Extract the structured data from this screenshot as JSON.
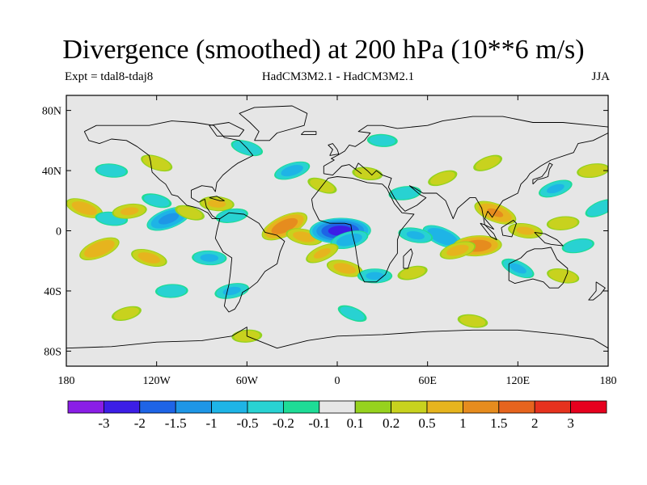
{
  "chart_data": {
    "type": "heatmap",
    "title": "Divergence (smoothed) at 200 hPa (10**6 m/s)",
    "experiment_label": "Expt = tdal8-tdaj8",
    "model_label": "HadCM3M2.1 - HadCM3M2.1",
    "season": "JJA",
    "xlabel": "",
    "ylabel": "",
    "xlim": [
      -180,
      180
    ],
    "ylim": [
      -90,
      90
    ],
    "x_ticks": [
      {
        "value": -180,
        "label": "180"
      },
      {
        "value": -120,
        "label": "120W"
      },
      {
        "value": -60,
        "label": "60W"
      },
      {
        "value": 0,
        "label": "0"
      },
      {
        "value": 60,
        "label": "60E"
      },
      {
        "value": 120,
        "label": "120E"
      },
      {
        "value": 180,
        "label": "180"
      }
    ],
    "y_ticks": [
      {
        "value": 80,
        "label": "80N"
      },
      {
        "value": 40,
        "label": "40N"
      },
      {
        "value": 0,
        "label": "0"
      },
      {
        "value": -40,
        "label": "40S"
      },
      {
        "value": -80,
        "label": "80S"
      }
    ],
    "colorbar": {
      "levels": [
        -3,
        -2,
        -1.5,
        -1,
        -0.5,
        -0.2,
        -0.1,
        0.1,
        0.2,
        0.5,
        1,
        1.5,
        2,
        3
      ],
      "labels": [
        "-3",
        "-2",
        "-1.5",
        "-1",
        "-0.5",
        "-0.2",
        "-0.1",
        "0.1",
        "0.2",
        "0.5",
        "1",
        "1.5",
        "2",
        "3"
      ],
      "colors": [
        "#8a1ee6",
        "#3c1ee6",
        "#1e64e6",
        "#1e96e6",
        "#1eb4e6",
        "#28d2d2",
        "#1edc96",
        "#e6e6e6",
        "#96d21e",
        "#c8d21e",
        "#e6b41e",
        "#e68c1e",
        "#e6641e",
        "#e6321e",
        "#e6001e"
      ]
    },
    "anomalies": [
      {
        "lon": -35,
        "lat": 3,
        "value": 1.3
      },
      {
        "lon": -22,
        "lat": -4,
        "value": 0.6
      },
      {
        "lon": 2,
        "lat": 0,
        "value": -2.2
      },
      {
        "lon": 8,
        "lat": -6,
        "value": -0.7
      },
      {
        "lon": 70,
        "lat": -4,
        "value": -0.9
      },
      {
        "lon": 52,
        "lat": -3,
        "value": -0.5
      },
      {
        "lon": 93,
        "lat": -10,
        "value": 1.3
      },
      {
        "lon": 80,
        "lat": -13,
        "value": 0.6
      },
      {
        "lon": 105,
        "lat": 12,
        "value": 1.0
      },
      {
        "lon": 125,
        "lat": 0,
        "value": 0.5
      },
      {
        "lon": 150,
        "lat": 5,
        "value": 0.4
      },
      {
        "lon": 145,
        "lat": 28,
        "value": -0.5
      },
      {
        "lon": -168,
        "lat": 15,
        "value": 0.7
      },
      {
        "lon": -150,
        "lat": 8,
        "value": -0.4
      },
      {
        "lon": -138,
        "lat": 13,
        "value": 0.5
      },
      {
        "lon": -112,
        "lat": 8,
        "value": -1.1
      },
      {
        "lon": -98,
        "lat": 12,
        "value": 0.3
      },
      {
        "lon": -80,
        "lat": 18,
        "value": 0.5
      },
      {
        "lon": -70,
        "lat": 10,
        "value": -0.4
      },
      {
        "lon": -158,
        "lat": -12,
        "value": 0.9
      },
      {
        "lon": -125,
        "lat": -18,
        "value": 0.6
      },
      {
        "lon": -85,
        "lat": -18,
        "value": -0.5
      },
      {
        "lon": -70,
        "lat": -40,
        "value": -0.5
      },
      {
        "lon": -10,
        "lat": -15,
        "value": 0.5
      },
      {
        "lon": 5,
        "lat": -25,
        "value": 0.6
      },
      {
        "lon": 25,
        "lat": -30,
        "value": -0.5
      },
      {
        "lon": 50,
        "lat": -28,
        "value": 0.3
      },
      {
        "lon": 120,
        "lat": -25,
        "value": -0.5
      },
      {
        "lon": 150,
        "lat": -30,
        "value": 0.4
      },
      {
        "lon": -110,
        "lat": -40,
        "value": -0.4
      },
      {
        "lon": -140,
        "lat": -55,
        "value": 0.3
      },
      {
        "lon": 10,
        "lat": -55,
        "value": -0.3
      },
      {
        "lon": 90,
        "lat": -60,
        "value": 0.3
      },
      {
        "lon": -60,
        "lat": -70,
        "value": 0.3
      },
      {
        "lon": -30,
        "lat": 40,
        "value": -0.6
      },
      {
        "lon": -10,
        "lat": 30,
        "value": 0.3
      },
      {
        "lon": 20,
        "lat": 38,
        "value": 0.3
      },
      {
        "lon": 45,
        "lat": 25,
        "value": -0.4
      },
      {
        "lon": 70,
        "lat": 35,
        "value": 0.3
      },
      {
        "lon": -120,
        "lat": 45,
        "value": 0.4
      },
      {
        "lon": -150,
        "lat": 40,
        "value": -0.4
      },
      {
        "lon": 170,
        "lat": 40,
        "value": 0.4
      },
      {
        "lon": 100,
        "lat": 45,
        "value": 0.3
      },
      {
        "lon": -60,
        "lat": 55,
        "value": -0.4
      },
      {
        "lon": 30,
        "lat": 60,
        "value": -0.3
      },
      {
        "lon": 160,
        "lat": -10,
        "value": -0.4
      },
      {
        "lon": 175,
        "lat": 15,
        "value": -0.4
      },
      {
        "lon": -120,
        "lat": 20,
        "value": -0.3
      }
    ]
  }
}
